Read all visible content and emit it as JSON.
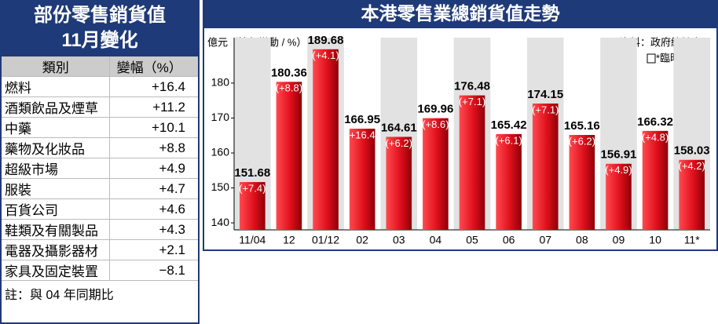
{
  "table": {
    "title": [
      "部份零售銷貨值",
      "11月變化"
    ],
    "header": [
      "類別",
      "變幅（%）"
    ],
    "rows": [
      [
        "燃料",
        "+16.4"
      ],
      [
        "酒類飲品及煙草",
        "+11.2"
      ],
      [
        "中藥",
        "+10.1"
      ],
      [
        "藥物及化妝品",
        "+8.8"
      ],
      [
        "超級市場",
        "+4.9"
      ],
      [
        "服裝",
        "+4.7"
      ],
      [
        "百貨公司",
        "+4.6"
      ],
      [
        "鞋類及有關製品",
        "+4.3"
      ],
      [
        "電器及攝影器材",
        "+2.1"
      ],
      [
        "家具及固定裝置",
        "−8.1"
      ]
    ],
    "note": "註：與 04 年同期比"
  },
  "chart_data": {
    "type": "bar",
    "title": "本港零售業總銷貨值走勢",
    "y_label": "億元（按年變動 / %）",
    "source": "資料：政府統計處",
    "footnote": "*臨時數字",
    "categories": [
      "11/04",
      "12",
      "01/12",
      "02",
      "03",
      "04",
      "05",
      "06",
      "07",
      "08",
      "09",
      "10",
      "11*"
    ],
    "values": [
      151.68,
      180.36,
      189.68,
      166.95,
      164.61,
      169.96,
      176.48,
      165.42,
      174.15,
      165.16,
      156.91,
      166.32,
      158.03
    ],
    "change_labels": [
      "(+7.4)",
      "(+8.8)",
      "(+4.1)",
      "(+16.4)",
      "(+6.2)",
      "(+8.6)",
      "(+7.1)",
      "(+6.1)",
      "(+7.1)",
      "(+6.2)",
      "(+4.9)",
      "(+4.8)",
      "(+4.2)"
    ],
    "color": "#d8101c",
    "ylim": [
      138,
      193
    ],
    "yticks": [
      140,
      150,
      160,
      170,
      180
    ]
  }
}
